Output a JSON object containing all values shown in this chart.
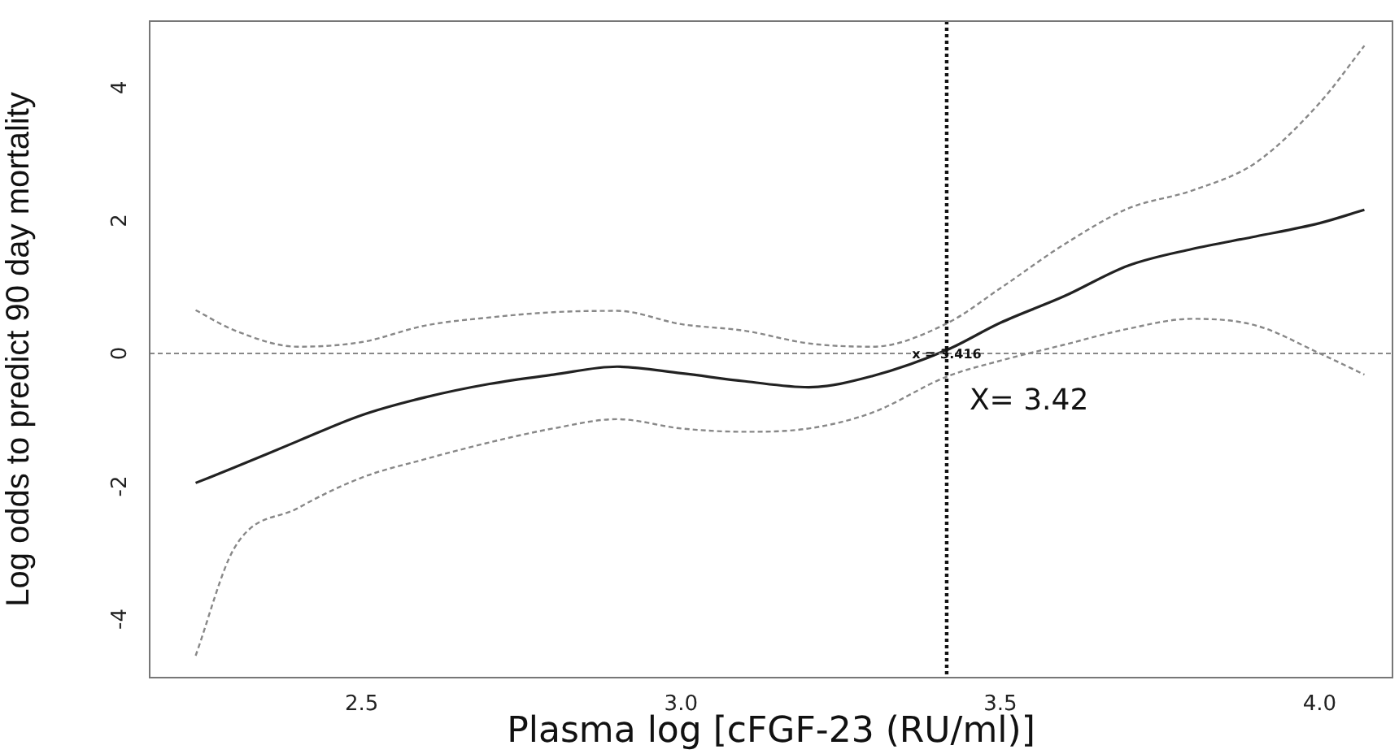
{
  "chart_data": {
    "type": "line",
    "xlabel": "Plasma log [cFGF-23 (RU/ml)]",
    "ylabel": "Log odds to predict 90 day mortality",
    "x": [
      2.24,
      2.3,
      2.4,
      2.5,
      2.6,
      2.7,
      2.8,
      2.9,
      3.0,
      3.1,
      3.2,
      3.3,
      3.416,
      3.5,
      3.6,
      3.7,
      3.8,
      3.9,
      4.0,
      4.07
    ],
    "series": [
      {
        "color": "#222222",
        "line_style": "solid",
        "values": [
          -1.95,
          -1.72,
          -1.32,
          -0.93,
          -0.66,
          -0.46,
          -0.32,
          -0.2,
          -0.3,
          -0.42,
          -0.51,
          -0.34,
          0.05,
          0.46,
          0.86,
          1.32,
          1.57,
          1.76,
          1.96,
          2.16
        ]
      },
      {
        "color": "#888888",
        "line_style": "dashed",
        "values": [
          0.65,
          0.35,
          0.1,
          0.17,
          0.42,
          0.54,
          0.62,
          0.64,
          0.44,
          0.34,
          0.15,
          0.1,
          0.45,
          0.98,
          1.64,
          2.18,
          2.45,
          2.87,
          3.77,
          4.63
        ]
      },
      {
        "color": "#888888",
        "line_style": "dashed",
        "values": [
          -4.55,
          -2.94,
          -2.33,
          -1.87,
          -1.59,
          -1.34,
          -1.13,
          -0.99,
          -1.13,
          -1.18,
          -1.13,
          -0.89,
          -0.35,
          -0.11,
          0.13,
          0.37,
          0.52,
          0.42,
          0,
          -0.32
        ]
      }
    ],
    "xlim": [
      2.168,
      4.114
    ],
    "xticks": [
      {
        "value": 2.5,
        "label": "2.5"
      },
      {
        "value": 3,
        "label": "3.0"
      },
      {
        "value": 3.5,
        "label": "3.5"
      },
      {
        "value": 4,
        "label": "4.0"
      }
    ],
    "ylim": [
      -4.88,
      5.0
    ],
    "yticks": [
      -4,
      -2,
      0,
      2,
      4
    ],
    "ref_lines": [
      {
        "axis": "y",
        "value": 0,
        "color": "#888888",
        "line_style": "dashed"
      },
      {
        "axis": "x",
        "value": 3.416,
        "label": "x = 3.416",
        "color": "#111111",
        "line_style": "dotted"
      }
    ],
    "annotations": [
      "X= 3.42"
    ],
    "grid": false,
    "legend": false,
    "marker": "none"
  }
}
